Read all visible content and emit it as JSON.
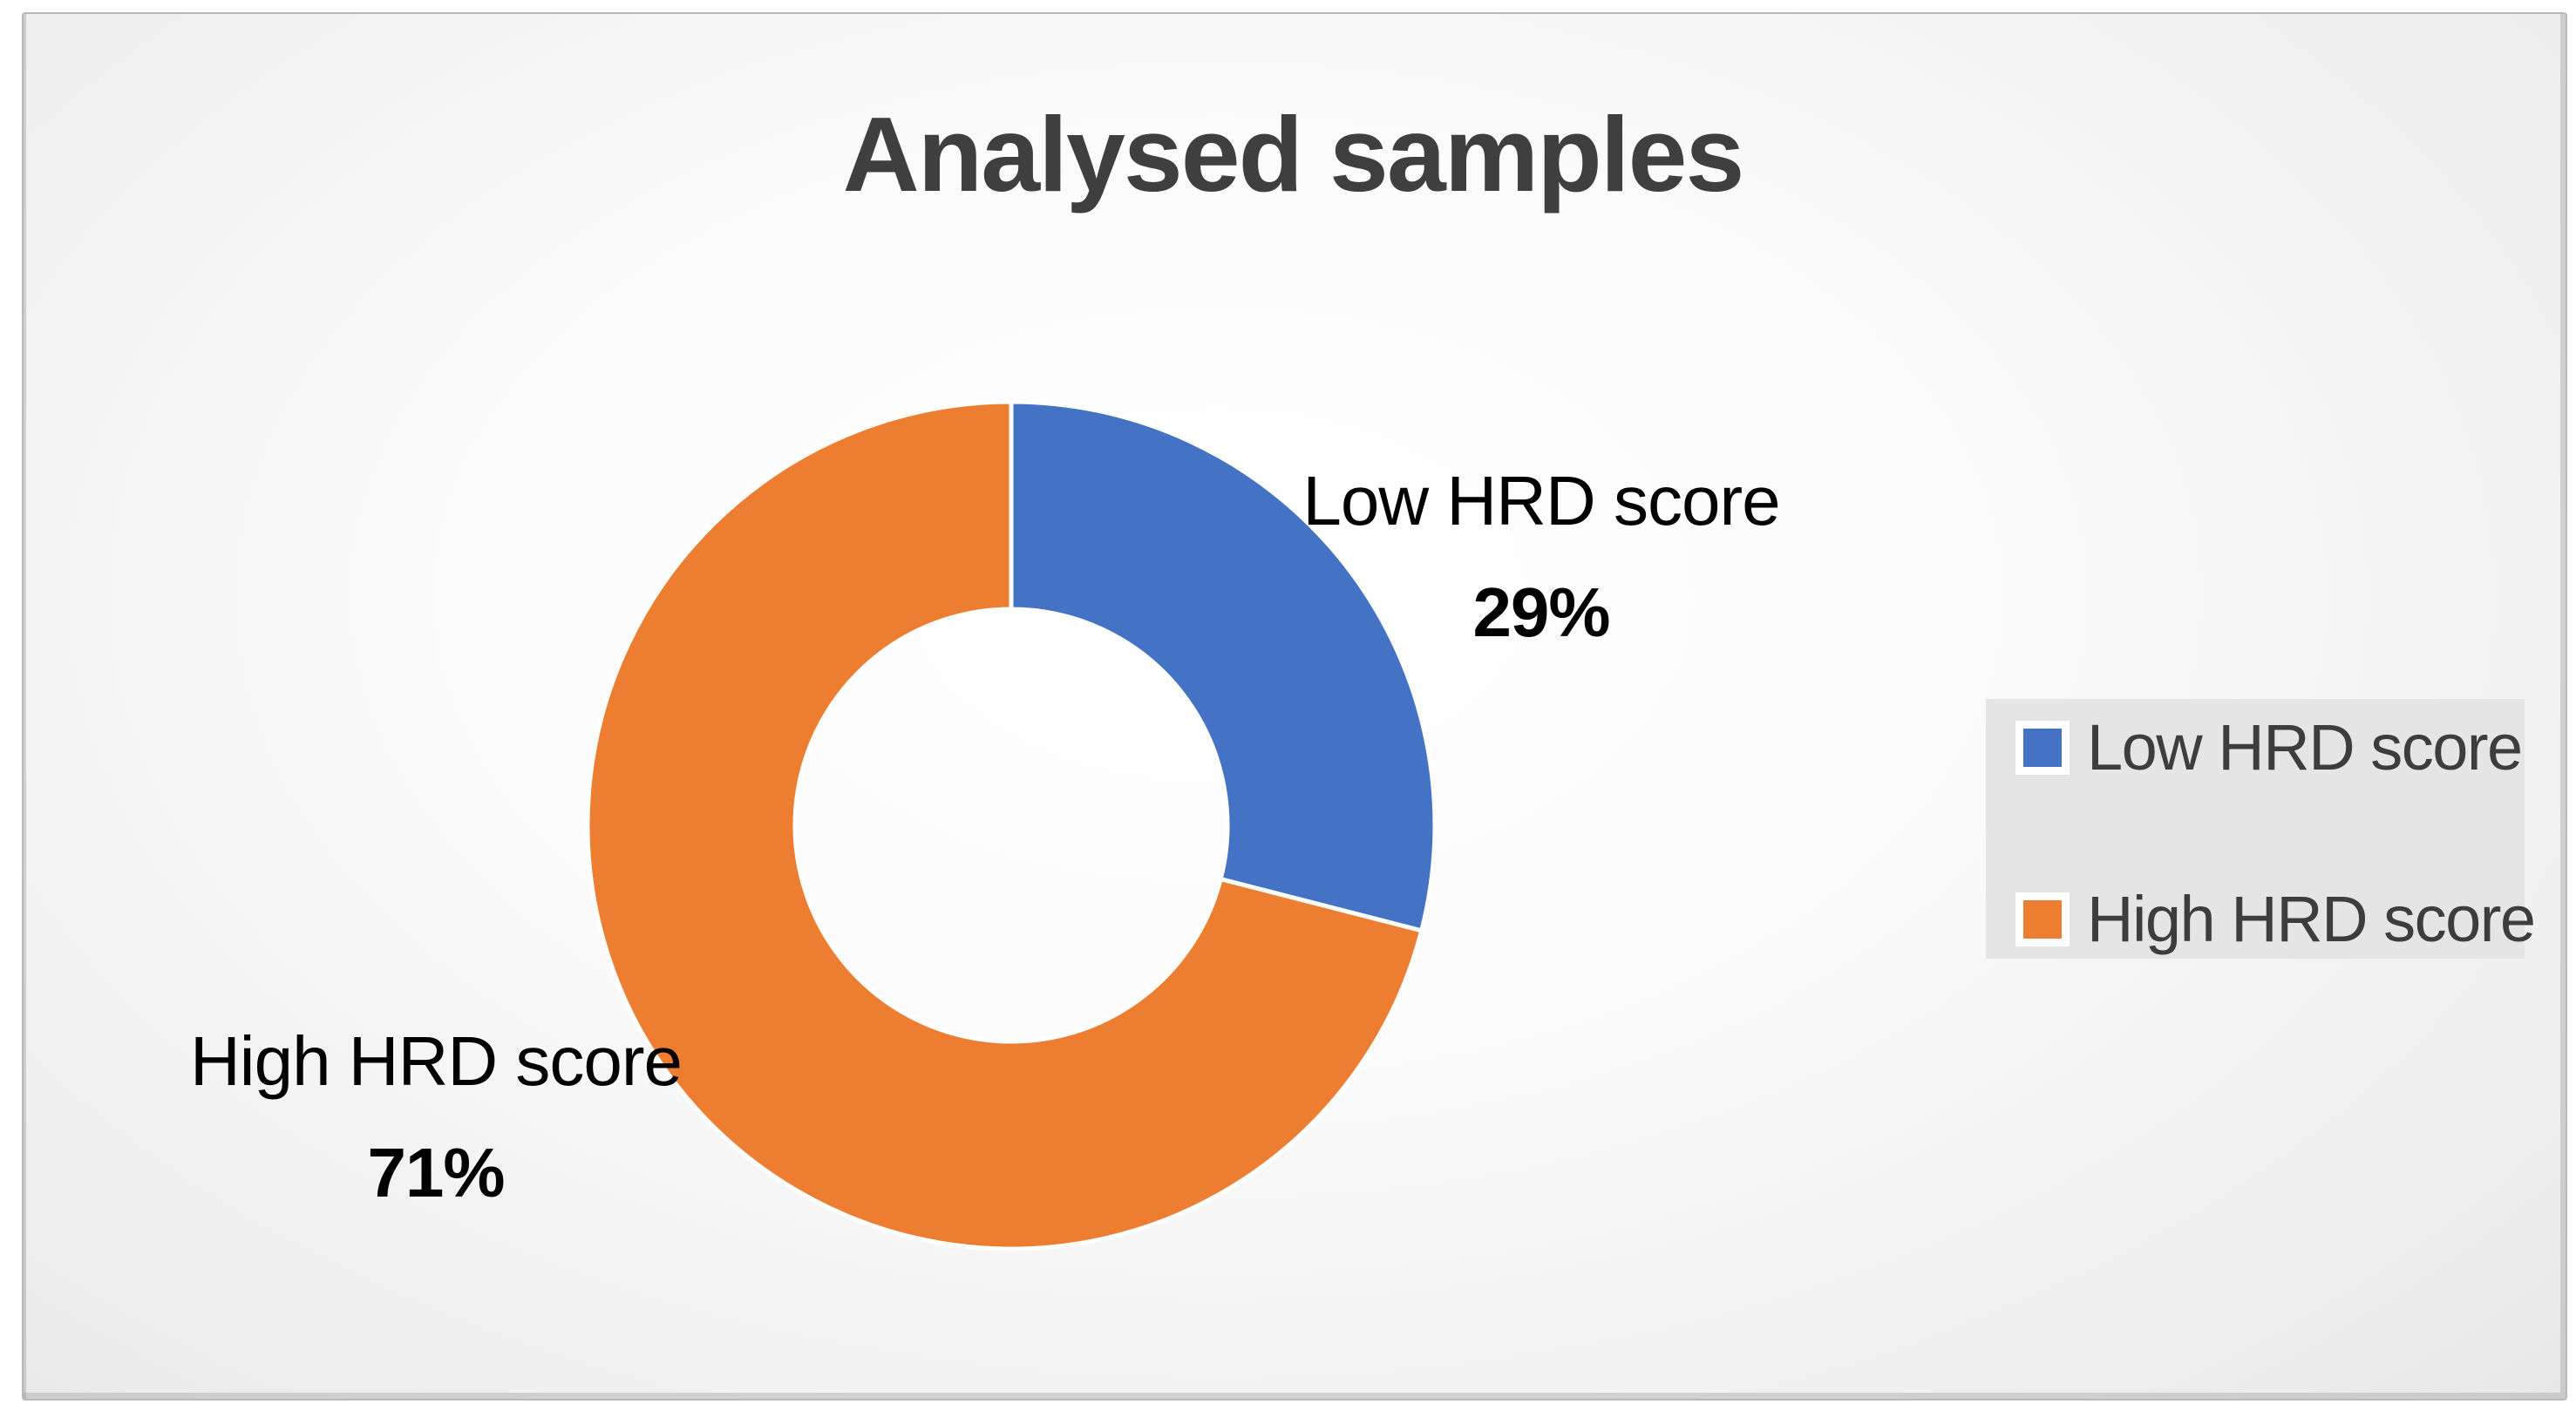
{
  "chart_data": {
    "type": "pie",
    "subtype": "donut",
    "title": "Analysed samples",
    "categories": [
      "Low HRD score",
      "High HRD score"
    ],
    "values": [
      29,
      71
    ],
    "labels_display": [
      "29%",
      "71%"
    ],
    "colors": [
      "#4472C4",
      "#ED7D31"
    ],
    "start_angle_deg": 0,
    "direction": "clockwise",
    "hole_ratio": 0.51,
    "slice_border_color": "#FFFFFF",
    "legend_position": "right",
    "data_labels_position": "outside"
  },
  "legend": {
    "background": "#E5E5E5",
    "items": [
      {
        "label": "Low HRD score",
        "color": "#4472C4"
      },
      {
        "label": "High HRD score",
        "color": "#ED7D31"
      }
    ]
  },
  "styles": {
    "title_color": "#3F3F3F",
    "label_color": "#000000",
    "legend_text_color": "#3D3D3D",
    "background_edge": "#C6C6C6",
    "background_center": "#FFFFFF"
  }
}
